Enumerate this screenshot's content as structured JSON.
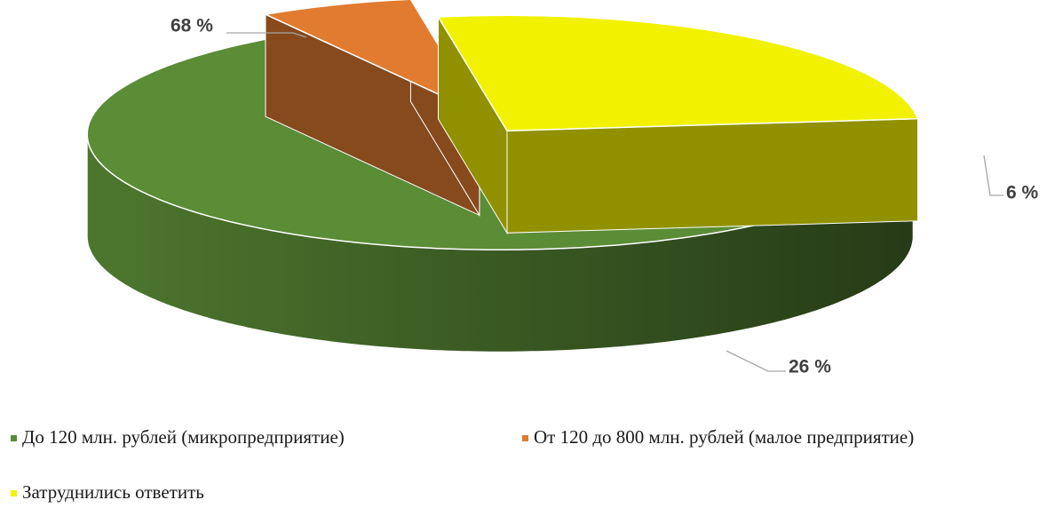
{
  "chart_data": {
    "type": "pie",
    "categories": [
      "До 120 млн. рублей (микропредприятие)",
      "От 120 до 800 млн. рублей (малое предприятие)",
      "Затруднились ответить"
    ],
    "values": [
      68,
      6,
      26
    ],
    "value_labels": [
      "68 %",
      "6 %",
      "26 %"
    ],
    "colors": [
      "#5b8c36",
      "#e07b30",
      "#f2f200"
    ],
    "legend": "bottom"
  }
}
